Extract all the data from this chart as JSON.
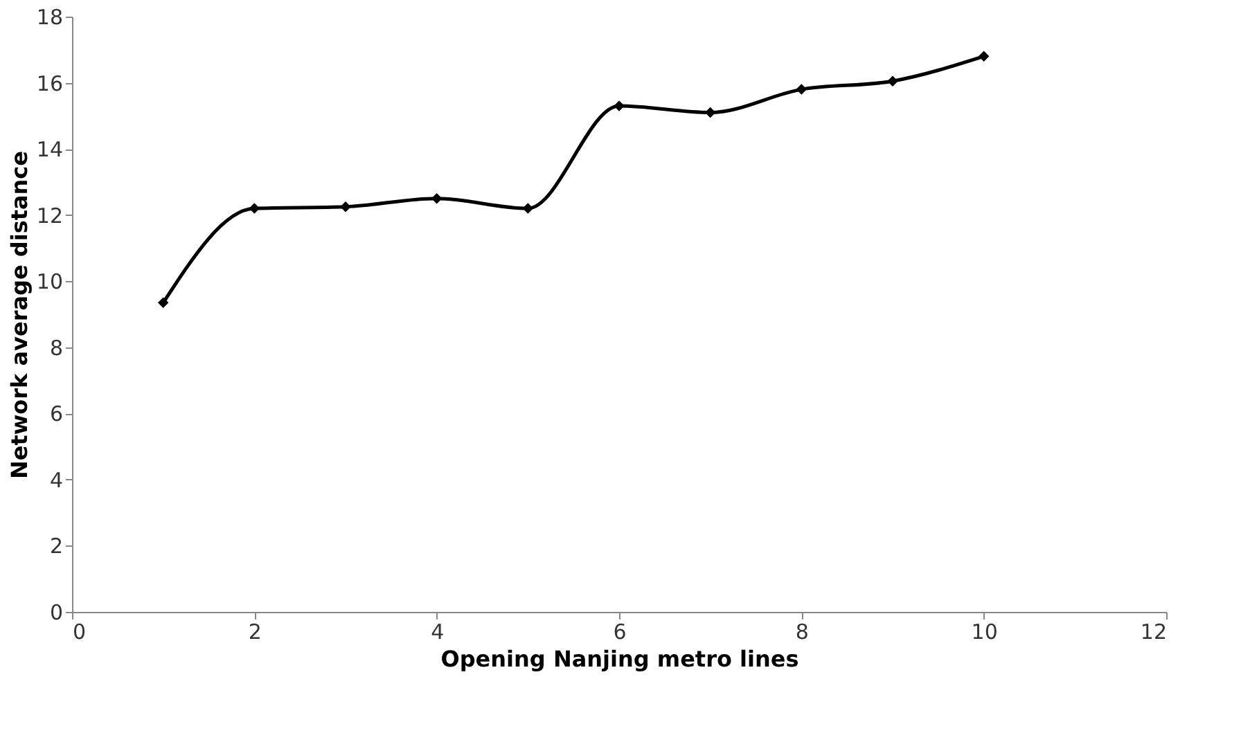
{
  "chart_data": {
    "type": "line",
    "xlabel": "Opening Nanjing metro lines",
    "ylabel": "Network average distance",
    "x": [
      1,
      2,
      3,
      4,
      5,
      6,
      7,
      8,
      9,
      10
    ],
    "series": [
      {
        "color": "#000000",
        "values": [
          9.35,
          12.2,
          12.25,
          12.5,
          12.2,
          15.3,
          15.1,
          15.8,
          16.05,
          16.8
        ]
      }
    ],
    "xlim": [
      0,
      12
    ],
    "xticks": [
      0,
      2,
      4,
      6,
      8,
      10,
      12
    ],
    "ylim": [
      0,
      18
    ],
    "yticks": [
      0,
      2,
      4,
      6,
      8,
      10,
      12,
      14,
      16,
      18
    ],
    "grid": false,
    "marker": "diamond",
    "line_style": "solid"
  }
}
